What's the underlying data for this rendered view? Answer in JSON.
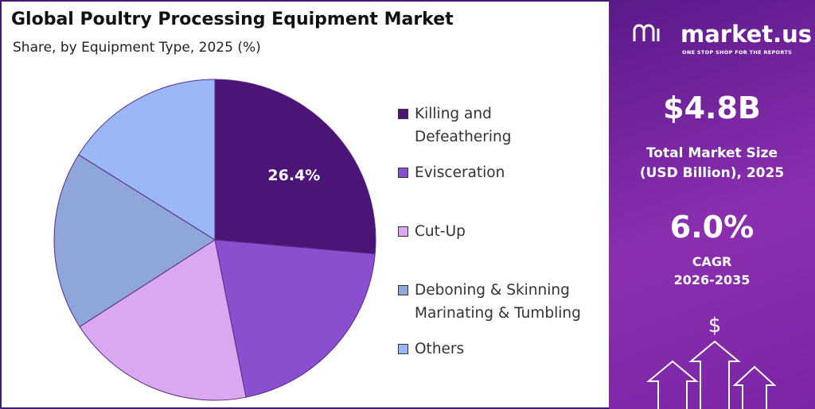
{
  "chart_data": {
    "type": "pie",
    "title": "Global Poultry Processing Equipment Market",
    "subtitle": "Share, by Equipment Type, 2025 (%)",
    "categories": [
      "Killing and Defeathering",
      "Evisceration",
      "Cut-Up",
      "Deboning & Skinning Marinating & Tumbling",
      "Others"
    ],
    "values": [
      26.4,
      20.5,
      19,
      18,
      16.1
    ],
    "value_labels": [
      "26.4%",
      null,
      null,
      null,
      null
    ],
    "colors": [
      "#4a1577",
      "#8a4fcf",
      "#d9a8ee",
      "#8fa6d8",
      "#9ab8f8"
    ]
  },
  "side_panel": {
    "brand": "market.us",
    "tagline": "ONE STOP SHOP FOR THE REPORTS",
    "market_size": "$4.8B",
    "market_size_label": "Total Market Size (USD Billion), 2025",
    "cagr": "6.0%",
    "cagr_label": "CAGR",
    "cagr_period": "2026-2035",
    "icon_symbol": "$"
  }
}
